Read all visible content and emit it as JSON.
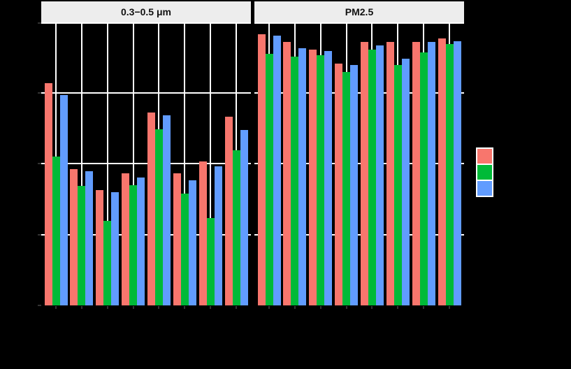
{
  "chart": {
    "background": "#000000",
    "strip_background": "#EDEDED",
    "strip_text_color": "#111111",
    "gridline_color": "#FFFFFF",
    "tick_color": "#333333",
    "legend_key_background": "#FFFFFF",
    "axis_tick_labels_visible": false,
    "axis_titles_visible": false,
    "legend_labels_visible": false
  },
  "chart_data": {
    "type": "bar",
    "layout": "grouped bars, 2 facets side by side, shared unlabeled y axis, legend right",
    "grid": "white major gridlines: vertical at each group center, horizontal at each y tick",
    "series_colors": [
      "#F8766D",
      "#00BA38",
      "#619CFF"
    ],
    "n_groups_per_facet": 8,
    "y_unit": "gridline intervals (tick labels not visible in image)",
    "ylim": [
      0,
      4.05
    ],
    "y_tick_values": [
      0,
      1,
      2,
      3,
      4
    ],
    "facets": [
      {
        "label": "0.3−0.5 μm",
        "series": [
          [
            3.13,
            1.92,
            1.63,
            1.86,
            2.72,
            1.86,
            2.03,
            2.66
          ],
          [
            2.1,
            1.68,
            1.19,
            1.69,
            2.48,
            1.58,
            1.23,
            2.19
          ],
          [
            2.97,
            1.89,
            1.6,
            1.8,
            2.68,
            1.76,
            1.96,
            2.47
          ]
        ]
      },
      {
        "label": "PM2.5",
        "series": [
          [
            3.82,
            3.71,
            3.61,
            3.41,
            3.71,
            3.71,
            3.71,
            3.76
          ],
          [
            3.55,
            3.51,
            3.53,
            3.29,
            3.61,
            3.39,
            3.57,
            3.68
          ],
          [
            3.8,
            3.63,
            3.59,
            3.39,
            3.67,
            3.48,
            3.71,
            3.72
          ]
        ]
      }
    ],
    "legend": {
      "position": "right",
      "n_keys": 3
    }
  }
}
